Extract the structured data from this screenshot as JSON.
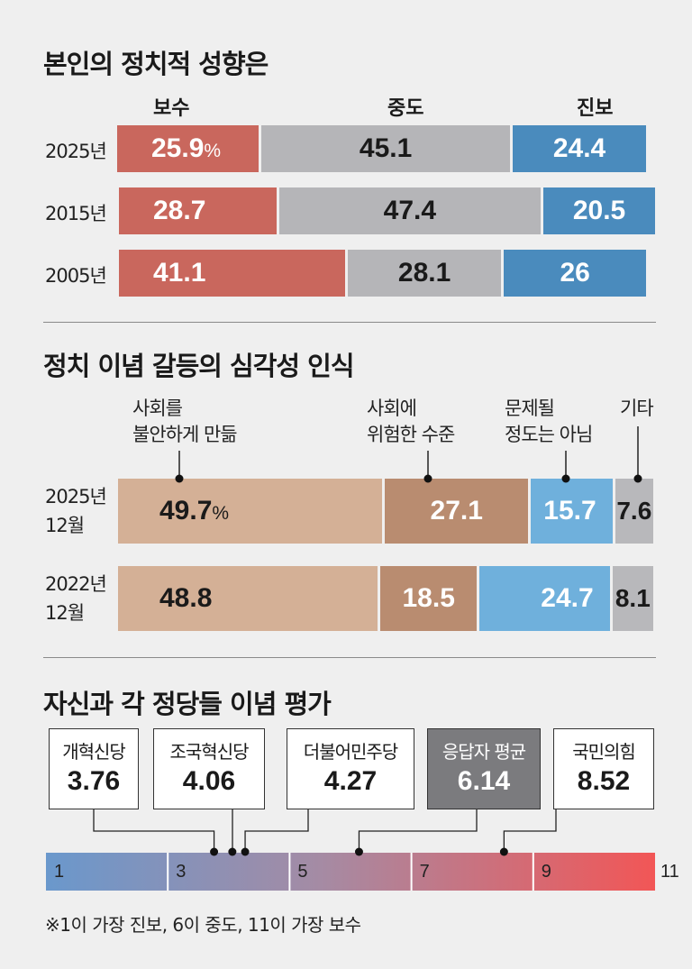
{
  "section1": {
    "title": "본인의 정치적 성향은",
    "headers": [
      "보수",
      "중도",
      "진보"
    ],
    "pct_mark": "%",
    "colors": [
      "#c9675d",
      "#b5b5b8",
      "#4a8bbd"
    ]
  },
  "section2": {
    "title": "정치 이념 갈등의 심각성 인식",
    "annotations": [
      [
        "사회를",
        "불안하게 만듦"
      ],
      [
        "사회에",
        "위험한 수준"
      ],
      [
        "문제될",
        "정도는 아님"
      ],
      [
        "기타"
      ]
    ],
    "pct_mark": "%",
    "colors": [
      "#d4b096",
      "#b98c70",
      "#6fb0dc",
      "#b8b8bb"
    ]
  },
  "section3": {
    "title": "자신과 각 정당들 이념 평가",
    "note": "※1이 가장 진보, 6이 중도, 11이 가장 보수"
  },
  "chart_data": [
    {
      "type": "bar",
      "stacked": true,
      "orientation": "horizontal",
      "title": "본인의 정치적 성향은",
      "categories": [
        "2025년",
        "2015년",
        "2005년"
      ],
      "series": [
        {
          "name": "보수",
          "values": [
            25.9,
            28.7,
            41.1
          ]
        },
        {
          "name": "중도",
          "values": [
            45.1,
            47.4,
            28.1
          ]
        },
        {
          "name": "진보",
          "values": [
            24.4,
            20.5,
            26
          ]
        }
      ]
    },
    {
      "type": "bar",
      "stacked": true,
      "orientation": "horizontal",
      "title": "정치 이념 갈등의 심각성 인식",
      "categories": [
        "2025년 12월",
        "2022년 12월"
      ],
      "series": [
        {
          "name": "사회를 불안하게 만듦",
          "values": [
            49.7,
            48.8
          ]
        },
        {
          "name": "사회에 위험한 수준",
          "values": [
            27.1,
            18.5
          ]
        },
        {
          "name": "문제될 정도는 아님",
          "values": [
            15.7,
            24.7
          ]
        },
        {
          "name": "기타",
          "values": [
            7.6,
            8.1
          ]
        }
      ]
    },
    {
      "type": "scatter",
      "title": "자신과 각 정당들 이념 평가",
      "xlim": [
        1,
        11
      ],
      "ticks": [
        "1",
        "3",
        "5",
        "7",
        "9",
        "11"
      ],
      "labels": [
        "개혁신당",
        "조국혁신당",
        "더불어민주당",
        "응답자 평균",
        "국민의힘"
      ],
      "values": [
        "3.76",
        "4.06",
        "4.27",
        "6.14",
        "8.52"
      ],
      "highlight": "응답자 평균"
    }
  ]
}
